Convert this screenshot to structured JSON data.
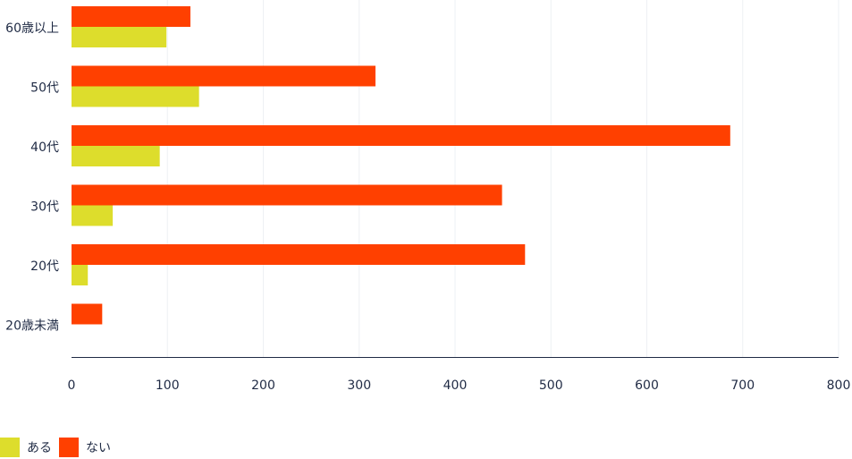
{
  "chart_data": {
    "type": "bar",
    "orientation": "horizontal",
    "categories": [
      "60歳以上",
      "50代",
      "40代",
      "30代",
      "20代",
      "20歳未満"
    ],
    "series": [
      {
        "name": "ない",
        "color": "#ff4000",
        "values": [
          124,
          317,
          687,
          449,
          473,
          32
        ]
      },
      {
        "name": "ある",
        "color": "#dddd2c",
        "values": [
          99,
          133,
          92,
          43,
          17,
          0
        ]
      }
    ],
    "xlim": [
      0,
      800
    ],
    "xticks": [
      0,
      100,
      200,
      300,
      400,
      500,
      600,
      700,
      800
    ],
    "grid": true,
    "legend_position": "bottom-left"
  },
  "legend": {
    "items": [
      {
        "label": "ある",
        "color": "#dddd2c"
      },
      {
        "label": "ない",
        "color": "#ff4000"
      }
    ]
  }
}
